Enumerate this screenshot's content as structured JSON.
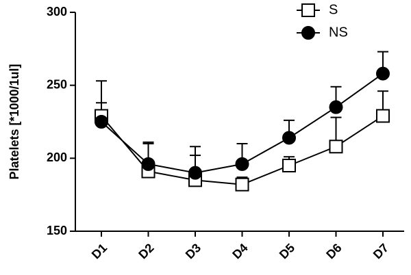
{
  "chart_data": {
    "type": "line",
    "y_label": "Platelets [*1000/1ul]",
    "categories": [
      "D1",
      "D2",
      "D3",
      "D4",
      "D5",
      "D6",
      "D7"
    ],
    "series": [
      {
        "name": "S",
        "color": "#000000",
        "marker": "square",
        "values": [
          229,
          191,
          185,
          182,
          195,
          208,
          229
        ],
        "errors": [
          9,
          19,
          17,
          5,
          6,
          20,
          17
        ]
      },
      {
        "name": "NS",
        "color": "#000000",
        "marker": "circle",
        "values": [
          225,
          196,
          190,
          196,
          214,
          235,
          258
        ],
        "errors": [
          28,
          15,
          18,
          14,
          12,
          14,
          15
        ]
      }
    ],
    "ylim": [
      150,
      300
    ],
    "yticks": [
      150,
      200,
      250,
      300
    ],
    "legend": "top-right"
  }
}
